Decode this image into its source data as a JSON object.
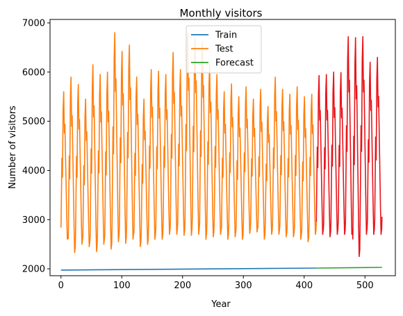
{
  "chart_data": {
    "type": "line",
    "title": "Monthly visitors",
    "xlabel": "Year",
    "ylabel": "Number of visitors",
    "xlim": [
      -18,
      550
    ],
    "ylim": [
      1860,
      7070
    ],
    "xticks": [
      0,
      100,
      200,
      300,
      400,
      500
    ],
    "yticks": [
      2000,
      3000,
      4000,
      5000,
      6000,
      7000
    ],
    "grid": false,
    "legend_position": "top-center",
    "series": [
      {
        "name": "Train",
        "color": "#1f77b4",
        "kind": "straight",
        "x": [
          0,
          420
        ],
        "y": [
          1975,
          2015
        ]
      },
      {
        "name": "Test",
        "color": "#ff7f0e",
        "kind": "seasonal",
        "x_start": 0,
        "period": 12,
        "peaks": [
          5600,
          5900,
          5750,
          5450,
          6150,
          5950,
          6000,
          6800,
          6420,
          6550,
          5900,
          5450,
          6050,
          6020,
          5950,
          6400,
          6050,
          6780,
          6700,
          6610,
          6160,
          5950,
          5600,
          5760,
          5500,
          5700,
          5450,
          5650,
          5300,
          5900,
          5650,
          5550,
          5700,
          5500,
          5550
        ],
        "troughs": [
          2600,
          2330,
          2500,
          2450,
          2350,
          2500,
          2400,
          2550,
          2520,
          2600,
          2450,
          2500,
          2600,
          2600,
          2700,
          2700,
          2680,
          2680,
          2700,
          2600,
          2650,
          2700,
          2600,
          2650,
          2600,
          2720,
          2750,
          2600,
          2700,
          2700,
          2650,
          2650,
          2600,
          2550,
          2700
        ]
      },
      {
        "name": "Forecast",
        "color": "#2ca02c",
        "kind": "straight",
        "x": [
          420,
          528
        ],
        "y": [
          2015,
          2030
        ]
      },
      {
        "name": "",
        "color": "#e8141a",
        "kind": "seasonal",
        "x_start": 420,
        "period": 12,
        "peaks": [
          5930,
          5950,
          6000,
          5990,
          6720,
          6700,
          6720,
          6200,
          6300
        ],
        "troughs": [
          2700,
          2650,
          2700,
          2700,
          2700,
          2250,
          2700,
          2700,
          2700
        ]
      }
    ]
  }
}
